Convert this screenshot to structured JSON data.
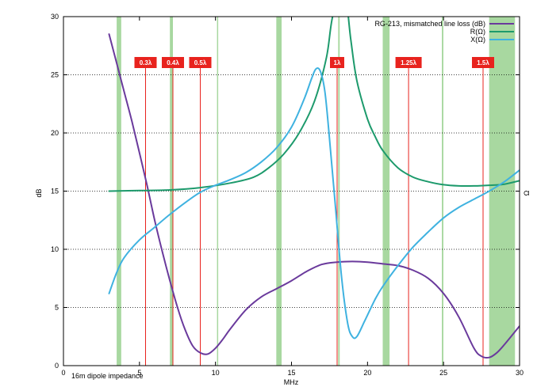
{
  "chart_data": {
    "type": "line",
    "caption": "16m dipole impedance",
    "xlabel": "MHz",
    "ylabel": "dB",
    "y2label": "Ω",
    "xlim": [
      0,
      30
    ],
    "ylim": [
      0,
      30
    ],
    "x_ticks": [
      0,
      5,
      10,
      15,
      20,
      25,
      30
    ],
    "y_ticks": [
      0,
      5,
      10,
      15,
      20,
      25,
      30
    ],
    "grid": "dotted horizontal",
    "legend_position": "top-right",
    "colors": {
      "loss": "#6a3a9c",
      "R": "#1d9a6c",
      "X": "#3fb2e0",
      "band": "#a8d8a0",
      "marker": "#e8231e"
    },
    "bands": [
      {
        "from": 3.5,
        "to": 3.8
      },
      {
        "from": 7.0,
        "to": 7.2
      },
      {
        "from": 10.1,
        "to": 10.15
      },
      {
        "from": 14.0,
        "to": 14.35
      },
      {
        "from": 18.07,
        "to": 18.17
      },
      {
        "from": 21.0,
        "to": 21.45
      },
      {
        "from": 24.89,
        "to": 24.99
      },
      {
        "from": 28.0,
        "to": 29.7
      }
    ],
    "wavelength_markers": [
      {
        "label": "0.3λ",
        "x": 5.4
      },
      {
        "label": "0.4λ",
        "x": 7.2
      },
      {
        "label": "0.5λ",
        "x": 9.0
      },
      {
        "label": "1λ",
        "x": 18.0
      },
      {
        "label": "1.25λ",
        "x": 22.7
      },
      {
        "label": "1.5λ",
        "x": 27.6
      }
    ],
    "series": [
      {
        "name": "RG-213, mismatched line loss (dB)",
        "key": "loss",
        "points": [
          [
            3.0,
            28.5
          ],
          [
            3.5,
            26.0
          ],
          [
            4.0,
            23.5
          ],
          [
            4.5,
            21.0
          ],
          [
            5.0,
            18.3
          ],
          [
            5.5,
            15.5
          ],
          [
            6.0,
            12.5
          ],
          [
            6.5,
            9.8
          ],
          [
            7.0,
            7.3
          ],
          [
            7.5,
            5.0
          ],
          [
            8.0,
            3.1
          ],
          [
            8.5,
            1.7
          ],
          [
            9.0,
            1.1
          ],
          [
            9.5,
            1.0
          ],
          [
            10.0,
            1.5
          ],
          [
            10.5,
            2.3
          ],
          [
            11.0,
            3.2
          ],
          [
            12.0,
            4.8
          ],
          [
            13.0,
            5.9
          ],
          [
            14.0,
            6.6
          ],
          [
            15.0,
            7.3
          ],
          [
            16.0,
            8.1
          ],
          [
            17.0,
            8.7
          ],
          [
            18.0,
            8.9
          ],
          [
            19.0,
            8.95
          ],
          [
            20.0,
            8.9
          ],
          [
            21.0,
            8.75
          ],
          [
            22.0,
            8.6
          ],
          [
            23.0,
            8.2
          ],
          [
            24.0,
            7.5
          ],
          [
            25.0,
            6.2
          ],
          [
            26.0,
            4.2
          ],
          [
            27.0,
            1.5
          ],
          [
            27.5,
            0.8
          ],
          [
            28.0,
            0.7
          ],
          [
            28.5,
            1.1
          ],
          [
            29.0,
            1.8
          ],
          [
            30.0,
            3.4
          ]
        ]
      },
      {
        "name": "R(Ω)",
        "key": "R",
        "points": [
          [
            3.0,
            15.0
          ],
          [
            5.0,
            15.05
          ],
          [
            7.0,
            15.1
          ],
          [
            9.0,
            15.3
          ],
          [
            11.0,
            15.7
          ],
          [
            12.5,
            16.2
          ],
          [
            13.5,
            17.0
          ],
          [
            14.5,
            18.2
          ],
          [
            15.5,
            20.0
          ],
          [
            16.5,
            22.7
          ],
          [
            17.3,
            26.5
          ],
          [
            17.7,
            30.0
          ],
          [
            18.4,
            33.0
          ],
          [
            18.9,
            28.0
          ],
          [
            19.3,
            24.5
          ],
          [
            20.0,
            21.2
          ],
          [
            20.5,
            19.7
          ],
          [
            21.0,
            18.5
          ],
          [
            22.0,
            17.0
          ],
          [
            23.0,
            16.2
          ],
          [
            24.0,
            15.8
          ],
          [
            25.0,
            15.55
          ],
          [
            26.0,
            15.45
          ],
          [
            27.0,
            15.45
          ],
          [
            28.0,
            15.5
          ],
          [
            29.0,
            15.6
          ],
          [
            30.0,
            15.9
          ]
        ]
      },
      {
        "name": "X(Ω)",
        "key": "X",
        "points": [
          [
            3.0,
            6.2
          ],
          [
            3.5,
            8.0
          ],
          [
            4.0,
            9.3
          ],
          [
            5.0,
            10.8
          ],
          [
            6.0,
            11.9
          ],
          [
            7.0,
            13.0
          ],
          [
            8.0,
            14.0
          ],
          [
            9.0,
            14.9
          ],
          [
            10.0,
            15.5
          ],
          [
            11.0,
            16.0
          ],
          [
            12.0,
            16.6
          ],
          [
            13.0,
            17.5
          ],
          [
            14.0,
            18.7
          ],
          [
            15.0,
            20.5
          ],
          [
            15.8,
            22.8
          ],
          [
            16.3,
            24.6
          ],
          [
            16.6,
            25.5
          ],
          [
            16.9,
            25.3
          ],
          [
            17.2,
            23.5
          ],
          [
            17.5,
            19.5
          ],
          [
            17.9,
            13.5
          ],
          [
            18.3,
            7.5
          ],
          [
            18.7,
            3.6
          ],
          [
            19.0,
            2.5
          ],
          [
            19.3,
            2.5
          ],
          [
            19.8,
            3.8
          ],
          [
            20.5,
            5.7
          ],
          [
            21.0,
            6.8
          ],
          [
            22.0,
            8.6
          ],
          [
            23.0,
            10.2
          ],
          [
            24.0,
            11.5
          ],
          [
            25.0,
            12.7
          ],
          [
            26.0,
            13.6
          ],
          [
            27.0,
            14.3
          ],
          [
            28.0,
            15.0
          ],
          [
            29.0,
            15.8
          ],
          [
            30.0,
            16.8
          ]
        ]
      }
    ]
  }
}
